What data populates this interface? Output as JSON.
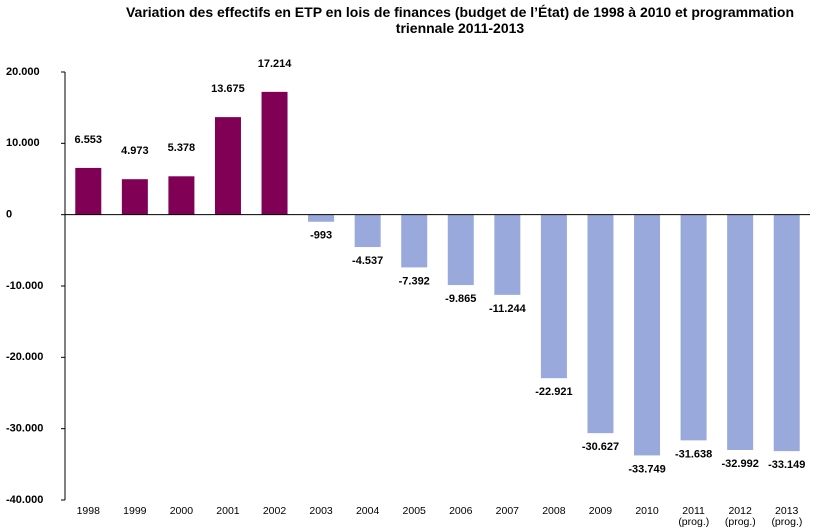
{
  "chart_data": {
    "type": "bar",
    "title": "Variation des effectifs en ETP en lois de finances (budget de l’État) de 1998 à 2010 et programmation triennale 2011-2013",
    "categories": [
      "1998",
      "1999",
      "2000",
      "2001",
      "2002",
      "2003",
      "2004",
      "2005",
      "2006",
      "2007",
      "2008",
      "2009",
      "2010",
      "2011 (prog.)",
      "2012 (prog.)",
      "2013 (prog.)"
    ],
    "values": [
      6553,
      4973,
      5378,
      13675,
      17214,
      -993,
      -4537,
      -7392,
      -9865,
      -11244,
      -22921,
      -30627,
      -33749,
      -31638,
      -32992,
      -33149
    ],
    "value_labels": [
      "6.553",
      "4.973",
      "5.378",
      "13.675",
      "17.214",
      "-993",
      "-4.537",
      "-7.392",
      "-9.865",
      "-11.244",
      "-22.921",
      "-30.627",
      "-33.749",
      "-31.638",
      "-32.992",
      "-33.149"
    ],
    "positive_color": "#7f0055",
    "negative_color": "#99a9dc",
    "ylim": [
      -40000,
      20000
    ],
    "yticks": [
      {
        "value": 20000,
        "label": "20.000"
      },
      {
        "value": 10000,
        "label": "10.000"
      },
      0,
      {
        "value": -10000,
        "label": "-10.000"
      },
      {
        "value": -20000,
        "label": "-20.000"
      },
      {
        "value": -30000,
        "label": "-30.000"
      },
      {
        "value": -40000,
        "label": "-40.000"
      }
    ],
    "grid": false
  }
}
